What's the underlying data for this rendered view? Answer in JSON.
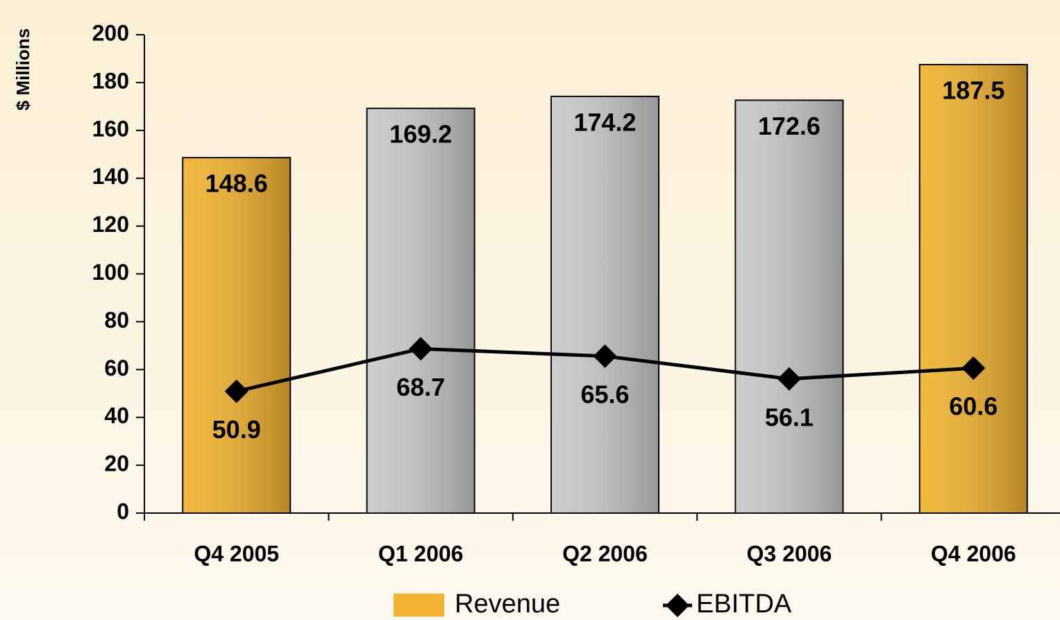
{
  "chart_data": {
    "type": "bar_line",
    "y_label": "$ Millions",
    "categories": [
      "Q4 2005",
      "Q1 2006",
      "Q2 2006",
      "Q3 2006",
      "Q4 2006"
    ],
    "series": [
      {
        "name": "Revenue",
        "type": "bar",
        "color": "#f0b22f",
        "colors": [
          "#f0b22f",
          "#c8c8c8",
          "#c8c8c8",
          "#c8c8c8",
          "#f0b22f"
        ],
        "values": [
          148.6,
          169.2,
          174.2,
          172.6,
          187.5
        ]
      },
      {
        "name": "EBITDA",
        "type": "line",
        "color": "#000000",
        "values": [
          50.9,
          68.7,
          65.6,
          56.1,
          60.6
        ]
      }
    ],
    "ylim": [
      0,
      200
    ],
    "yticks": [
      0,
      20,
      40,
      60,
      80,
      100,
      120,
      140,
      160,
      180,
      200
    ],
    "grid": false,
    "legend": "bottom"
  }
}
